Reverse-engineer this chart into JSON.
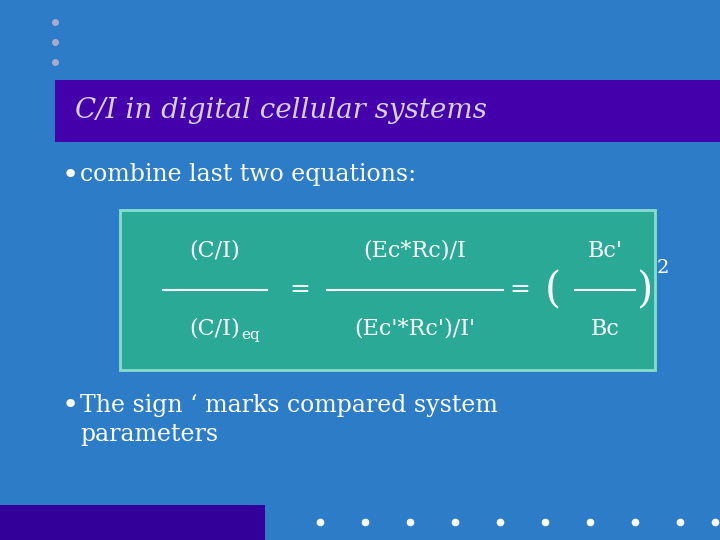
{
  "bg_color": "#2d7cc8",
  "title_bg_color": "#4400aa",
  "title_text": "C/I in digital cellular systems",
  "title_text_color": "#d8d0e8",
  "body_text_color": "#ffffff",
  "box_bg_color": "#2aaa96",
  "box_border_color": "#88ddcc",
  "bullet1": "combine last two equations:",
  "bullet2_line1": "The sign ‘ marks compared system",
  "bullet2_line2": "parameters",
  "dot_color": "#aaaacc",
  "dot_color_bottom": "#ffffff",
  "bottom_bar_color": "#330099",
  "title_fontsize": 20,
  "body_fontsize": 17,
  "eq_fontsize": 16
}
